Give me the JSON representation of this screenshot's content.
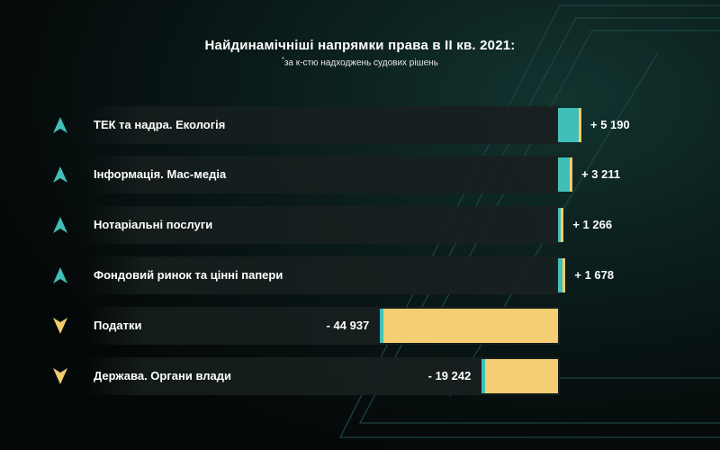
{
  "colors": {
    "positive_bar": "#3fbfb8",
    "negative_bar": "#f5cd72",
    "up_arrow": "#3fbfb8",
    "down_arrow": "#f2cc6e",
    "background": "#050808"
  },
  "chart_data": {
    "type": "bar",
    "orientation": "horizontal",
    "title": "Найдинамічніші напрямки права в ІІ кв. 2021:",
    "subtitle_mark": "*",
    "subtitle": "за к-стю надходжень судових рішень",
    "categories": [
      "ТЕК та надра. Екологія",
      "Інформація. Мас-медіа",
      "Нотаріальні послуги",
      "Фондовий ринок та цінні папери",
      "Податки",
      "Держава. Органи влади"
    ],
    "values": [
      5190,
      3211,
      1266,
      1678,
      -44937,
      -19242
    ],
    "value_labels": [
      "+ 5 190",
      "+ 3 211",
      "+ 1 266",
      "+ 1 678",
      "- 44 937",
      "- 19 242"
    ],
    "directions": [
      "up",
      "up",
      "up",
      "up",
      "down",
      "down"
    ],
    "icons": [
      "up-arrow-icon",
      "up-arrow-icon",
      "up-arrow-icon",
      "up-arrow-icon",
      "down-arrow-icon",
      "down-arrow-icon"
    ]
  }
}
